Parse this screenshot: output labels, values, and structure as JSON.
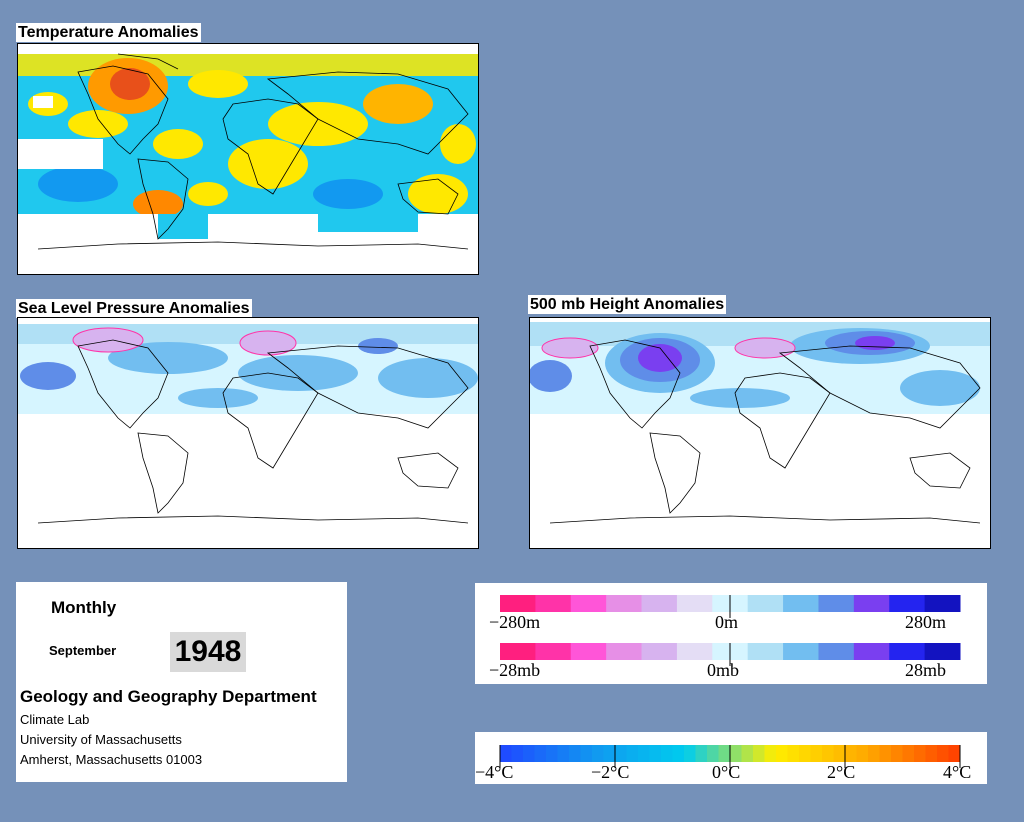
{
  "panels": {
    "temperature": {
      "title": "Temperature Anomalies"
    },
    "slp": {
      "title": "Sea Level Pressure Anomalies"
    },
    "height500": {
      "title": "500 mb Height Anomalies"
    }
  },
  "info": {
    "frequency": "Monthly",
    "month": "September",
    "year": "1948",
    "department": "Geology and Geography Department",
    "lines": [
      "Climate Lab",
      "University of Massachusetts",
      "Amherst, Massachusetts 01003"
    ]
  },
  "legends": {
    "height": {
      "min": "−280m",
      "mid": "0m",
      "max": "280m"
    },
    "pressure": {
      "min": "−28mb",
      "mid": "0mb",
      "max": "28mb"
    },
    "temperature": {
      "labels": [
        "−4°C",
        "−2°C",
        "0°C",
        "2°C",
        "4°C"
      ]
    }
  },
  "colors": {
    "background": "#7591b9",
    "anomaly_scale": [
      "#ff1f7f",
      "#ff33a8",
      "#ff55d8",
      "#e68fe6",
      "#d7b3ef",
      "#e4ddf5",
      "#d6f5ff",
      "#b0e0f5",
      "#72bef0",
      "#5f8de8",
      "#7a3ff0",
      "#2424f0",
      "#1313c0"
    ],
    "temp_scale": [
      "#1f4cff",
      "#1199f0",
      "#00ccee",
      "#ffee00",
      "#ffaa00",
      "#ff4400"
    ]
  }
}
